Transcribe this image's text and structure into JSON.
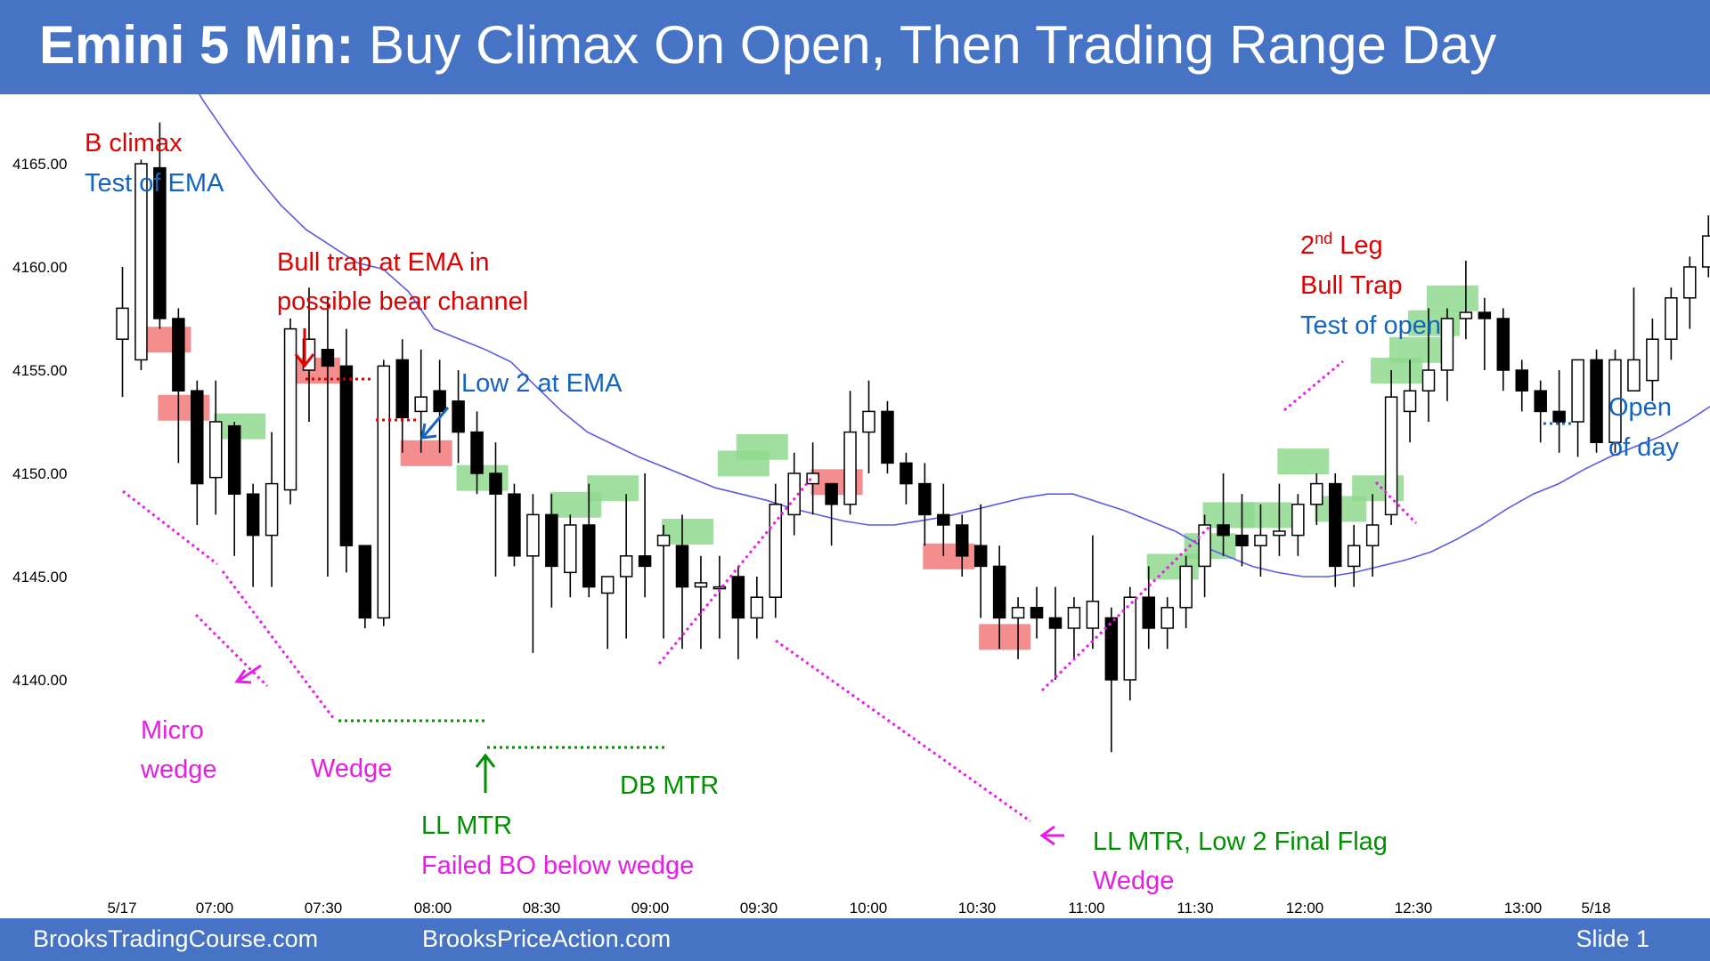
{
  "title": {
    "bold": "Emini 5 Min:",
    "rest": " Buy Climax On Open, Then Trading Range Day"
  },
  "footer": {
    "left": "BrooksTradingCourse.com",
    "center": "BrooksPriceAction.com",
    "right": "Slide  1"
  },
  "colors": {
    "bar": "#4673C4",
    "bull_box": "#8FD98F",
    "bear_box": "#F27A7A",
    "ema": "#5A5AE6",
    "magenta": "#E61EE6",
    "red": "#E00000",
    "green": "#009000",
    "blue": "#1565C0"
  },
  "chart_data": {
    "type": "candlestick",
    "title": "Emini 5 Min: Buy Climax On Open, Then Trading Range Day",
    "ylim": [
      4136,
      4168
    ],
    "y_ticks": [
      "4140.00",
      "4145.00",
      "4150.00",
      "4155.00",
      "4160.00",
      "4165.00"
    ],
    "x_ticks": [
      "5/17",
      "07:00",
      "07:30",
      "08:00",
      "08:30",
      "09:00",
      "09:30",
      "10:00",
      "10:30",
      "11:00",
      "11:30",
      "12:00",
      "12:30",
      "13:00",
      "5/18"
    ],
    "candles": [
      {
        "o": 4156.5,
        "h": 4160,
        "l": 4153.7,
        "c": 4158
      },
      {
        "o": 4155.5,
        "h": 4165.2,
        "l": 4155,
        "c": 4165
      },
      {
        "o": 4164.8,
        "h": 4167,
        "l": 4157,
        "c": 4157.5
      },
      {
        "o": 4157.5,
        "h": 4158,
        "l": 4150.5,
        "c": 4154
      },
      {
        "o": 4154,
        "h": 4154.5,
        "l": 4147.5,
        "c": 4149.5
      },
      {
        "o": 4149.8,
        "h": 4154.5,
        "l": 4148,
        "c": 4152.5
      },
      {
        "o": 4152.3,
        "h": 4152.5,
        "l": 4146,
        "c": 4149
      },
      {
        "o": 4149,
        "h": 4149.5,
        "l": 4144.5,
        "c": 4147
      },
      {
        "o": 4147,
        "h": 4152,
        "l": 4144.5,
        "c": 4149.5
      },
      {
        "o": 4149.2,
        "h": 4157.5,
        "l": 4148.5,
        "c": 4157
      },
      {
        "o": 4155,
        "h": 4159,
        "l": 4152.5,
        "c": 4156.5
      },
      {
        "o": 4156,
        "h": 4158.5,
        "l": 4145,
        "c": 4155.2
      },
      {
        "o": 4155.2,
        "h": 4157,
        "l": 4145.2,
        "c": 4146.5
      },
      {
        "o": 4146.5,
        "h": 4146.5,
        "l": 4142.5,
        "c": 4143
      },
      {
        "o": 4143,
        "h": 4155.5,
        "l": 4142.6,
        "c": 4155.2
      },
      {
        "o": 4155.5,
        "h": 4156.5,
        "l": 4151,
        "c": 4152.7
      },
      {
        "o": 4153,
        "h": 4156,
        "l": 4151,
        "c": 4153.7
      },
      {
        "o": 4154,
        "h": 4155.5,
        "l": 4151,
        "c": 4153
      },
      {
        "o": 4153.5,
        "h": 4155,
        "l": 4150.5,
        "c": 4152
      },
      {
        "o": 4152,
        "h": 4153,
        "l": 4149,
        "c": 4150
      },
      {
        "o": 4150,
        "h": 4151.5,
        "l": 4145,
        "c": 4149
      },
      {
        "o": 4149,
        "h": 4149.5,
        "l": 4145.5,
        "c": 4146
      },
      {
        "o": 4146,
        "h": 4149,
        "l": 4141.3,
        "c": 4148
      },
      {
        "o": 4148,
        "h": 4149,
        "l": 4143.5,
        "c": 4145.5
      },
      {
        "o": 4145.2,
        "h": 4148,
        "l": 4144,
        "c": 4147.5
      },
      {
        "o": 4147.5,
        "h": 4149.5,
        "l": 4144,
        "c": 4144.5
      },
      {
        "o": 4144.2,
        "h": 4145,
        "l": 4141.5,
        "c": 4145
      },
      {
        "o": 4145,
        "h": 4149,
        "l": 4142,
        "c": 4146
      },
      {
        "o": 4146,
        "h": 4150,
        "l": 4144,
        "c": 4145.5
      },
      {
        "o": 4146.5,
        "h": 4147.5,
        "l": 4142,
        "c": 4147
      },
      {
        "o": 4146.5,
        "h": 4148,
        "l": 4141.5,
        "c": 4144.5
      },
      {
        "o": 4144.5,
        "h": 4146,
        "l": 4141.5,
        "c": 4144.7
      },
      {
        "o": 4144.5,
        "h": 4146,
        "l": 4142,
        "c": 4144.5
      },
      {
        "o": 4145,
        "h": 4145.5,
        "l": 4141,
        "c": 4143
      },
      {
        "o": 4143,
        "h": 4145,
        "l": 4142,
        "c": 4144
      },
      {
        "o": 4144,
        "h": 4149.5,
        "l": 4143,
        "c": 4148.5
      },
      {
        "o": 4148,
        "h": 4151,
        "l": 4147,
        "c": 4150
      },
      {
        "o": 4149.5,
        "h": 4151.5,
        "l": 4148,
        "c": 4150
      },
      {
        "o": 4149.5,
        "h": 4149.5,
        "l": 4146.5,
        "c": 4148.5
      },
      {
        "o": 4148.5,
        "h": 4154,
        "l": 4148,
        "c": 4152
      },
      {
        "o": 4152,
        "h": 4154.5,
        "l": 4150,
        "c": 4153
      },
      {
        "o": 4153,
        "h": 4153.5,
        "l": 4150,
        "c": 4150.5
      },
      {
        "o": 4150.5,
        "h": 4151,
        "l": 4148.5,
        "c": 4149.5
      },
      {
        "o": 4149.5,
        "h": 4150.5,
        "l": 4146.5,
        "c": 4148
      },
      {
        "o": 4148,
        "h": 4149.5,
        "l": 4146,
        "c": 4147.5
      },
      {
        "o": 4147.5,
        "h": 4148,
        "l": 4145,
        "c": 4146
      },
      {
        "o": 4146.5,
        "h": 4148.5,
        "l": 4143,
        "c": 4145.5
      },
      {
        "o": 4145.5,
        "h": 4146.5,
        "l": 4141.5,
        "c": 4143
      },
      {
        "o": 4143,
        "h": 4144,
        "l": 4141,
        "c": 4143.5
      },
      {
        "o": 4143.5,
        "h": 4144.5,
        "l": 4142,
        "c": 4143
      },
      {
        "o": 4143,
        "h": 4144.5,
        "l": 4140,
        "c": 4142.5
      },
      {
        "o": 4142.5,
        "h": 4144,
        "l": 4141,
        "c": 4143.5
      },
      {
        "o": 4142.5,
        "h": 4147,
        "l": 4141.5,
        "c": 4143.8
      },
      {
        "o": 4143,
        "h": 4143.5,
        "l": 4136.5,
        "c": 4140
      },
      {
        "o": 4140,
        "h": 4144.5,
        "l": 4139,
        "c": 4144
      },
      {
        "o": 4144,
        "h": 4145.5,
        "l": 4141.5,
        "c": 4142.5
      },
      {
        "o": 4142.5,
        "h": 4144,
        "l": 4141.5,
        "c": 4143.5
      },
      {
        "o": 4143.5,
        "h": 4146,
        "l": 4142.5,
        "c": 4145.5
      },
      {
        "o": 4145.5,
        "h": 4148,
        "l": 4144,
        "c": 4147.5
      },
      {
        "o": 4147.5,
        "h": 4150,
        "l": 4146,
        "c": 4147
      },
      {
        "o": 4147,
        "h": 4149,
        "l": 4145.5,
        "c": 4146.5
      },
      {
        "o": 4146.5,
        "h": 4148.5,
        "l": 4145,
        "c": 4147
      },
      {
        "o": 4147,
        "h": 4149.5,
        "l": 4146,
        "c": 4147.2
      },
      {
        "o": 4147,
        "h": 4149,
        "l": 4146,
        "c": 4148.5
      },
      {
        "o": 4148.5,
        "h": 4150,
        "l": 4147.5,
        "c": 4149.5
      },
      {
        "o": 4149.5,
        "h": 4150,
        "l": 4144.5,
        "c": 4145.5
      },
      {
        "o": 4145.5,
        "h": 4147.5,
        "l": 4144.5,
        "c": 4146.5
      },
      {
        "o": 4146.5,
        "h": 4149,
        "l": 4145,
        "c": 4147.5
      },
      {
        "o": 4148,
        "h": 4155,
        "l": 4147.5,
        "c": 4153.7
      },
      {
        "o": 4153,
        "h": 4155.5,
        "l": 4151.5,
        "c": 4154
      },
      {
        "o": 4154,
        "h": 4158,
        "l": 4152.5,
        "c": 4155
      },
      {
        "o": 4155,
        "h": 4158,
        "l": 4153.5,
        "c": 4157.5
      },
      {
        "o": 4157.5,
        "h": 4160.3,
        "l": 4156.5,
        "c": 4157.8
      },
      {
        "o": 4157.8,
        "h": 4158.5,
        "l": 4155,
        "c": 4157.5
      },
      {
        "o": 4157.5,
        "h": 4158,
        "l": 4154,
        "c": 4155
      },
      {
        "o": 4155,
        "h": 4155.5,
        "l": 4153,
        "c": 4154
      },
      {
        "o": 4154,
        "h": 4154.5,
        "l": 4151.5,
        "c": 4153
      },
      {
        "o": 4153,
        "h": 4155,
        "l": 4151,
        "c": 4152.5
      },
      {
        "o": 4152.5,
        "h": 4155.5,
        "l": 4150.8,
        "c": 4155.5
      },
      {
        "o": 4155.5,
        "h": 4156,
        "l": 4151,
        "c": 4151.5
      },
      {
        "o": 4151.5,
        "h": 4156,
        "l": 4151,
        "c": 4155.5
      },
      {
        "o": 4154,
        "h": 4159,
        "l": 4154,
        "c": 4155.5
      },
      {
        "o": 4154.5,
        "h": 4157.5,
        "l": 4153.5,
        "c": 4156.5
      },
      {
        "o": 4156.5,
        "h": 4159,
        "l": 4155.5,
        "c": 4158.5
      },
      {
        "o": 4158.5,
        "h": 4160.5,
        "l": 4157,
        "c": 4160
      },
      {
        "o": 4160,
        "h": 4162.5,
        "l": 4159.5,
        "c": 4161.5
      },
      {
        "o": 4161,
        "h": 4162,
        "l": 4160,
        "c": 4161.2
      },
      {
        "o": 4161.5,
        "h": 4161.8,
        "l": 4160,
        "c": 4160
      }
    ],
    "ema": [
      4170,
      4168,
      4166.2,
      4164.5,
      4163,
      4161.8,
      4161,
      4160.2,
      4159.9,
      4158.8,
      4157,
      4156.5,
      4156,
      4155.4,
      4154.2,
      4153,
      4152,
      4151.4,
      4150.8,
      4150.3,
      4149.8,
      4149.3,
      4149,
      4148.7,
      4148.3,
      4148,
      4147.7,
      4147.5,
      4147.5,
      4147.7,
      4147.9,
      4148.2,
      4148.5,
      4148.8,
      4149,
      4149,
      4148.6,
      4148.2,
      4147.7,
      4147.2,
      4146.5,
      4146,
      4145.5,
      4145.2,
      4145,
      4145,
      4145.2,
      4145.5,
      4145.8,
      4146.2,
      4146.8,
      4147.5,
      4148.3,
      4149,
      4149.5,
      4150.2,
      4150.8,
      4151.3,
      4151.8,
      4152.5,
      4153.3,
      4154.2,
      4155
    ],
    "bull_boxes": [
      [
        6,
        4152.3
      ],
      [
        19,
        4149.8
      ],
      [
        24,
        4148.5
      ],
      [
        26,
        4149.3
      ],
      [
        30,
        4147.2
      ],
      [
        33,
        4150.5
      ],
      [
        34,
        4151.3
      ],
      [
        56,
        4145.5
      ],
      [
        58,
        4146.5
      ],
      [
        59,
        4148
      ],
      [
        61,
        4148
      ],
      [
        63,
        4150.6
      ],
      [
        65,
        4148.3
      ],
      [
        67,
        4149.3
      ],
      [
        68,
        4155
      ],
      [
        69,
        4156
      ],
      [
        70,
        4157.3
      ],
      [
        71,
        4158.5
      ]
    ],
    "bear_boxes": [
      [
        2,
        4156.5
      ],
      [
        3,
        4153.2
      ],
      [
        10,
        4155
      ],
      [
        16,
        4151
      ],
      [
        38,
        4149.6
      ],
      [
        44,
        4146
      ],
      [
        47,
        4142.1
      ]
    ],
    "annotations": {
      "b_climax": "B climax",
      "test_of_ema": "Test of EMA",
      "bull_trap_1": "Bull trap at EMA in",
      "bull_trap_2": "possible bear channel",
      "low2_ema": "Low 2 at EMA",
      "micro": "Micro",
      "micro_wedge": "wedge",
      "wedge": "Wedge",
      "ll_mtr": "LL MTR",
      "failed_bo": "Failed BO below wedge",
      "db_mtr": "DB MTR",
      "ll_mtr_low2": "LL MTR, Low 2 Final Flag",
      "wedge2": "Wedge",
      "second": "2",
      "nd_leg": "nd",
      "leg_word": " Leg",
      "bull_trap": "Bull Trap",
      "test_of_open": "Test of open",
      "open": "Open",
      "of_day": "of day"
    }
  }
}
